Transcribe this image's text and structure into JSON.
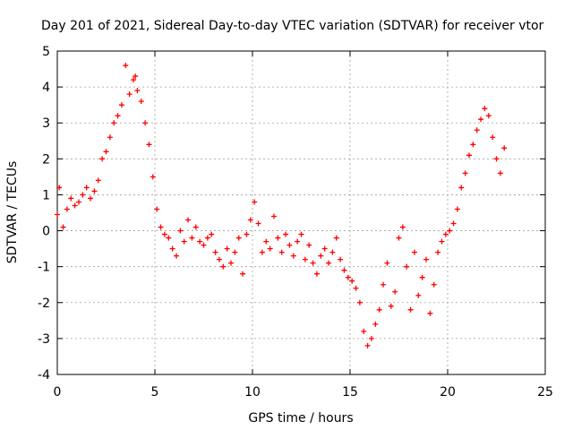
{
  "chart_data": {
    "type": "scatter",
    "title": "Day 201 of 2021, Sidereal Day-to-day VTEC variation (SDTVAR) for receiver vtor",
    "xlabel": "GPS time / hours",
    "ylabel": "SDTVAR / TECUs",
    "xlim": [
      0,
      25
    ],
    "ylim": [
      -4,
      5
    ],
    "xticks": [
      "0",
      "5",
      "10",
      "15",
      "20",
      "25"
    ],
    "yticks": [
      "-4",
      "-3",
      "-2",
      "-1",
      "0",
      "1",
      "2",
      "3",
      "4",
      "5"
    ],
    "grid": true,
    "marker": "+",
    "series": [
      {
        "name": "SDTVAR",
        "color": "#ff0000",
        "x": [
          0.0,
          0.1,
          0.3,
          0.5,
          0.7,
          0.9,
          1.1,
          1.3,
          1.5,
          1.7,
          1.9,
          2.1,
          2.3,
          2.5,
          2.7,
          2.9,
          3.1,
          3.3,
          3.5,
          3.7,
          3.9,
          4.0,
          4.1,
          4.3,
          4.5,
          4.7,
          4.9,
          5.1,
          5.3,
          5.5,
          5.7,
          5.9,
          6.1,
          6.3,
          6.5,
          6.7,
          6.9,
          7.1,
          7.3,
          7.5,
          7.7,
          7.9,
          8.1,
          8.3,
          8.5,
          8.7,
          8.9,
          9.1,
          9.3,
          9.5,
          9.7,
          9.9,
          10.1,
          10.3,
          10.5,
          10.7,
          10.9,
          11.1,
          11.3,
          11.5,
          11.7,
          11.9,
          12.1,
          12.3,
          12.5,
          12.7,
          12.9,
          13.1,
          13.3,
          13.5,
          13.7,
          13.9,
          14.1,
          14.3,
          14.5,
          14.7,
          14.9,
          15.1,
          15.3,
          15.5,
          15.7,
          15.9,
          16.1,
          16.3,
          16.5,
          16.7,
          16.9,
          17.1,
          17.3,
          17.5,
          17.7,
          17.9,
          18.1,
          18.3,
          18.5,
          18.7,
          18.9,
          19.1,
          19.3,
          19.5,
          19.7,
          19.9,
          20.1,
          20.3,
          20.5,
          20.7,
          20.9,
          21.1,
          21.3,
          21.5,
          21.7,
          21.9,
          22.1,
          22.3,
          22.5,
          22.7,
          22.9
        ],
        "y": [
          0.45,
          1.2,
          0.1,
          0.6,
          0.9,
          0.7,
          0.8,
          1.0,
          1.2,
          0.9,
          1.1,
          1.4,
          2.0,
          2.2,
          2.6,
          3.0,
          3.2,
          3.5,
          4.6,
          3.8,
          4.2,
          4.3,
          3.9,
          3.6,
          3.0,
          2.4,
          1.5,
          0.6,
          0.1,
          -0.1,
          -0.2,
          -0.5,
          -0.7,
          0.0,
          -0.3,
          0.3,
          -0.2,
          0.1,
          -0.3,
          -0.4,
          -0.2,
          -0.1,
          -0.6,
          -0.8,
          -1.0,
          -0.5,
          -0.9,
          -0.6,
          -0.2,
          -1.2,
          -0.1,
          0.3,
          0.8,
          0.2,
          -0.6,
          -0.3,
          -0.5,
          0.4,
          -0.2,
          -0.6,
          -0.1,
          -0.4,
          -0.7,
          -0.3,
          -0.1,
          -0.8,
          -0.4,
          -0.9,
          -1.2,
          -0.7,
          -0.5,
          -0.9,
          -0.6,
          -0.2,
          -0.8,
          -1.1,
          -1.3,
          -1.4,
          -1.6,
          -2.0,
          -2.8,
          -3.2,
          -3.0,
          -2.6,
          -2.2,
          -1.5,
          -0.9,
          -2.1,
          -1.7,
          -0.2,
          0.1,
          -1.0,
          -2.2,
          -0.6,
          -1.8,
          -1.3,
          -0.8,
          -2.3,
          -1.5,
          -0.6,
          -0.3,
          -0.1,
          0.0,
          0.2,
          0.6,
          1.2,
          1.6,
          2.1,
          2.4,
          2.8,
          3.1,
          3.4,
          3.2,
          2.6,
          2.0,
          1.6,
          2.3
        ]
      }
    ]
  }
}
